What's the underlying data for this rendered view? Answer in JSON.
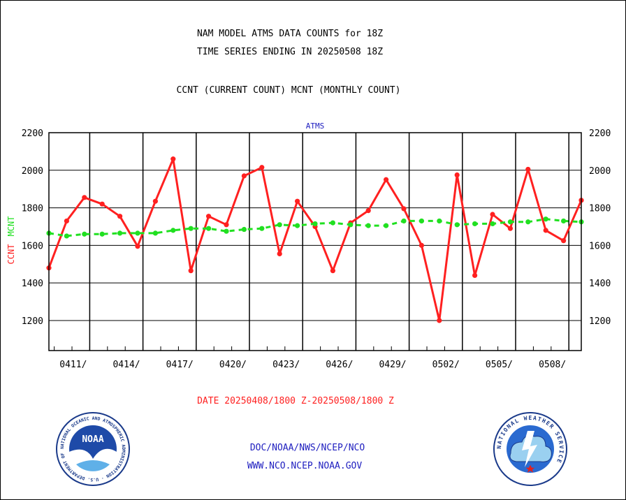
{
  "header": {
    "title_line1": "NAM MODEL ATMS DATA COUNTS for 18Z",
    "title_line2": "TIME SERIES ENDING IN 20250508 18Z",
    "legend_line": "CCNT (CURRENT COUNT) MCNT (MONTHLY COUNT)"
  },
  "chart_data": {
    "type": "line",
    "title": "ATMS",
    "ylabel_ccnt": "CCNT",
    "ylabel_mcnt": "MCNT",
    "xlabel": "DATE 20250408/1800 Z-20250508/1800 Z",
    "ylim": [
      1040,
      2200
    ],
    "xlim": [
      0,
      30
    ],
    "yticks": [
      1200,
      1400,
      1600,
      1800,
      2000,
      2200
    ],
    "xticks": [
      {
        "day": 2.3,
        "label": "0411/"
      },
      {
        "day": 5.3,
        "label": "0414/"
      },
      {
        "day": 8.3,
        "label": "0417/"
      },
      {
        "day": 11.3,
        "label": "0420/"
      },
      {
        "day": 14.3,
        "label": "0423/"
      },
      {
        "day": 17.3,
        "label": "0426/"
      },
      {
        "day": 20.3,
        "label": "0429/"
      },
      {
        "day": 23.3,
        "label": "0502/"
      },
      {
        "day": 26.3,
        "label": "0505/"
      },
      {
        "day": 29.3,
        "label": "0508/"
      }
    ],
    "vlines": [
      2.3,
      5.3,
      8.3,
      11.3,
      14.3,
      17.3,
      20.3,
      23.3,
      26.3,
      29.3
    ],
    "grid": true,
    "series": [
      {
        "name": "CCNT",
        "color": "#ff2020",
        "style": "solid",
        "values": [
          1480,
          1730,
          1855,
          1820,
          1755,
          1595,
          1835,
          2060,
          1465,
          1755,
          1710,
          1970,
          2015,
          1555,
          1835,
          1700,
          1465,
          1720,
          1785,
          1950,
          1795,
          1600,
          1200,
          1975,
          1440,
          1765,
          1690,
          2005,
          1680,
          1625,
          1840
        ]
      },
      {
        "name": "MCNT",
        "color": "#20e020",
        "style": "dashed",
        "values": [
          1665,
          1650,
          1660,
          1660,
          1665,
          1665,
          1665,
          1680,
          1690,
          1690,
          1675,
          1685,
          1690,
          1710,
          1705,
          1715,
          1720,
          1710,
          1705,
          1705,
          1730,
          1730,
          1730,
          1710,
          1715,
          1715,
          1725,
          1725,
          1740,
          1730,
          1725
        ]
      }
    ]
  },
  "footer": {
    "center_line1": "DOC/NOAA/NWS/NCEP/NCO",
    "center_line2": "WWW.NCO.NCEP.NOAA.GOV",
    "noaa_logo_text": "NOAA",
    "noaa_ring_text": "NATIONAL OCEANIC AND ATMOSPHERIC ADMINISTRATION · U.S. DEPARTMENT OF COMMERCE",
    "nws_ring_text": "NATIONAL WEATHER SERVICE"
  },
  "colors": {
    "title_text": "#000000",
    "blue_text": "#2020c0",
    "red_text": "#ff2020",
    "green_text": "#20e020"
  }
}
